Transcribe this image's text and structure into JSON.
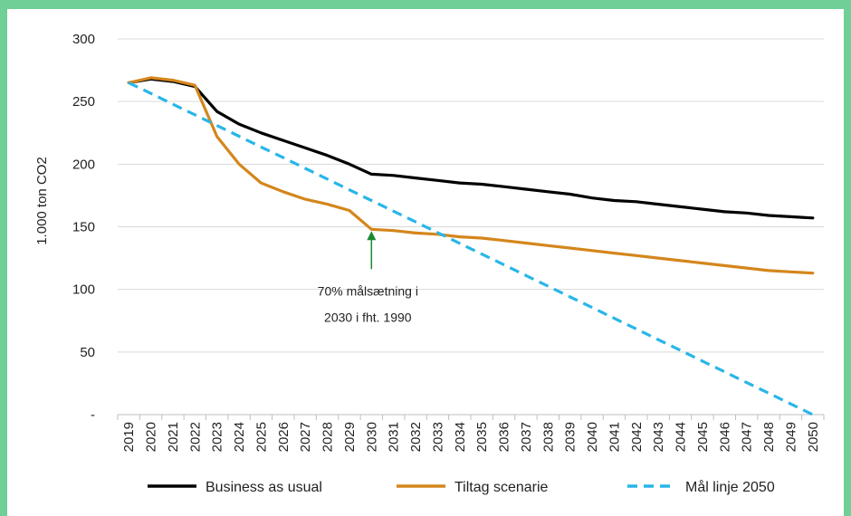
{
  "chart_data": {
    "type": "line",
    "ylabel": "1.000 ton CO2",
    "ylim": [
      0,
      300
    ],
    "yticks": [
      {
        "value": 300,
        "label": "300"
      },
      {
        "value": 250,
        "label": "250"
      },
      {
        "value": 200,
        "label": "200"
      },
      {
        "value": 150,
        "label": "150"
      },
      {
        "value": 100,
        "label": "100"
      },
      {
        "value": 50,
        "label": "50"
      },
      {
        "value": 0,
        "label": "-"
      }
    ],
    "grid": true,
    "legend_position": "bottom",
    "x": [
      "2019",
      "2020",
      "2021",
      "2022",
      "2023",
      "2024",
      "2025",
      "2026",
      "2027",
      "2028",
      "2029",
      "2030",
      "2031",
      "2032",
      "2033",
      "2034",
      "2035",
      "2036",
      "2037",
      "2038",
      "2039",
      "2040",
      "2041",
      "2042",
      "2043",
      "2044",
      "2045",
      "2046",
      "2047",
      "2048",
      "2049",
      "2050"
    ],
    "series": [
      {
        "name": "Business as usual",
        "color": "#000000",
        "dash": false,
        "values": [
          265,
          268,
          266,
          262,
          242,
          232,
          225,
          219,
          213,
          207,
          200,
          192,
          191,
          189,
          187,
          185,
          184,
          182,
          180,
          178,
          176,
          173,
          171,
          170,
          168,
          166,
          164,
          162,
          161,
          159,
          158,
          157
        ]
      },
      {
        "name": "Tiltag scenarie",
        "color": "#d4861c",
        "dash": false,
        "values": [
          265,
          269,
          267,
          263,
          222,
          200,
          185,
          178,
          172,
          168,
          163,
          148,
          147,
          145,
          144,
          142,
          141,
          139,
          137,
          135,
          133,
          131,
          129,
          127,
          125,
          123,
          121,
          119,
          117,
          115,
          114,
          113
        ]
      },
      {
        "name": "Mål linje 2050",
        "color": "#29b6e8",
        "dash": true,
        "values": [
          265,
          256.5,
          247.9,
          239.4,
          230.8,
          222.3,
          213.7,
          205.2,
          196.6,
          188.1,
          179.5,
          171,
          162.4,
          153.9,
          145.3,
          136.8,
          128.2,
          119.7,
          111.1,
          102.6,
          94,
          85.5,
          76.9,
          68.4,
          59.8,
          51.3,
          42.7,
          34.2,
          25.6,
          17.1,
          8.5,
          0
        ]
      }
    ],
    "annotation": {
      "line1": "70% målsætning i",
      "line2": "2030 i fht. 1990",
      "x": "2030",
      "y": 148,
      "arrow_color": "#1a8a2e"
    }
  }
}
